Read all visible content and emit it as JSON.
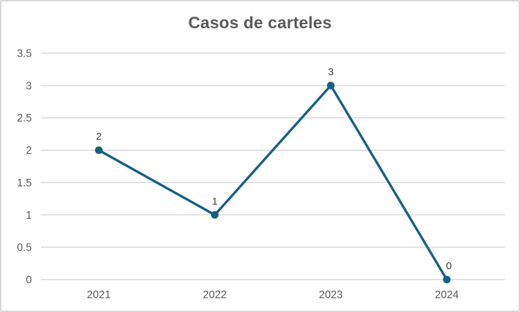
{
  "chart_data": {
    "type": "line",
    "title": "Casos de carteles",
    "categories": [
      "2021",
      "2022",
      "2023",
      "2024"
    ],
    "values": [
      2,
      1,
      3,
      0
    ],
    "data_labels": [
      "2",
      "1",
      "3",
      "0"
    ],
    "xlabel": "",
    "ylabel": "",
    "ylim": [
      0,
      3.5
    ],
    "ytick_step": 0.5,
    "ytick_labels": [
      "0",
      "0.5",
      "1",
      "1.5",
      "2",
      "2.5",
      "3",
      "3.5"
    ],
    "grid": true,
    "legend_position": "none",
    "colors": {
      "series": "#156082",
      "gridline": "#D9D9D9",
      "axis_line": "#D9D9D9",
      "tick_label": "#595959",
      "title": "#595959",
      "data_label": "#404040",
      "background": "#FFFFFF",
      "border": "#D9D9D9"
    }
  }
}
